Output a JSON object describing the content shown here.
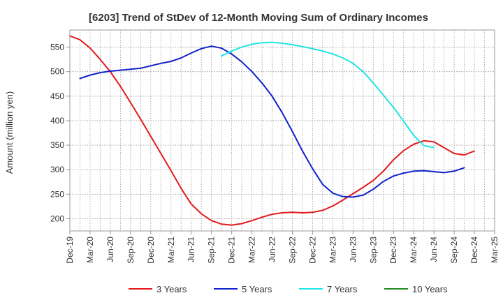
{
  "chart_data": {
    "type": "line",
    "title": "[6203]  Trend of StDev of 12-Month Moving Sum of Ordinary Incomes",
    "ylabel": "Amount (million yen)",
    "xlabel": "",
    "ylim": [
      175,
      585
    ],
    "yticks": [
      200,
      250,
      300,
      350,
      400,
      450,
      500,
      550
    ],
    "x_ticks": [
      "Dec-19",
      "Mar-20",
      "Jun-20",
      "Sep-20",
      "Dec-20",
      "Mar-21",
      "Jun-21",
      "Sep-21",
      "Dec-21",
      "Mar-22",
      "Jun-22",
      "Sep-22",
      "Dec-22",
      "Mar-23",
      "Jun-23",
      "Sep-23",
      "Dec-23",
      "Mar-24",
      "Jun-24",
      "Sep-24",
      "Dec-24",
      "Mar-25"
    ],
    "grid": true,
    "legend_position": "bottom",
    "series": [
      {
        "name": "3 Years",
        "color": "#e31a1c",
        "points": [
          [
            0,
            573
          ],
          [
            1,
            565
          ],
          [
            2,
            548
          ],
          [
            3,
            525
          ],
          [
            4,
            500
          ],
          [
            5,
            470
          ],
          [
            6,
            437
          ],
          [
            7,
            403
          ],
          [
            8,
            368
          ],
          [
            9,
            333
          ],
          [
            10,
            298
          ],
          [
            11,
            262
          ],
          [
            12,
            230
          ],
          [
            13,
            210
          ],
          [
            14,
            196
          ],
          [
            15,
            189
          ],
          [
            16,
            187
          ],
          [
            17,
            190
          ],
          [
            18,
            196
          ],
          [
            19,
            203
          ],
          [
            20,
            209
          ],
          [
            21,
            212
          ],
          [
            22,
            213
          ],
          [
            23,
            212
          ],
          [
            24,
            213
          ],
          [
            25,
            217
          ],
          [
            26,
            226
          ],
          [
            27,
            238
          ],
          [
            28,
            251
          ],
          [
            29,
            264
          ],
          [
            30,
            278
          ],
          [
            31,
            297
          ],
          [
            32,
            320
          ],
          [
            33,
            339
          ],
          [
            34,
            352
          ],
          [
            35,
            359
          ],
          [
            36,
            357
          ],
          [
            37,
            345
          ],
          [
            38,
            333
          ],
          [
            39,
            330
          ],
          [
            40,
            338
          ]
        ]
      },
      {
        "name": "5 Years",
        "color": "#1122cc",
        "points": [
          [
            1,
            486
          ],
          [
            2,
            493
          ],
          [
            3,
            498
          ],
          [
            4,
            501
          ],
          [
            5,
            503
          ],
          [
            6,
            505
          ],
          [
            7,
            507
          ],
          [
            8,
            512
          ],
          [
            9,
            517
          ],
          [
            10,
            521
          ],
          [
            11,
            528
          ],
          [
            12,
            538
          ],
          [
            13,
            547
          ],
          [
            14,
            552
          ],
          [
            15,
            548
          ],
          [
            16,
            536
          ],
          [
            17,
            520
          ],
          [
            18,
            500
          ],
          [
            19,
            477
          ],
          [
            20,
            450
          ],
          [
            21,
            416
          ],
          [
            22,
            378
          ],
          [
            23,
            338
          ],
          [
            24,
            302
          ],
          [
            25,
            270
          ],
          [
            26,
            252
          ],
          [
            27,
            245
          ],
          [
            28,
            244
          ],
          [
            29,
            248
          ],
          [
            30,
            260
          ],
          [
            31,
            276
          ],
          [
            32,
            287
          ],
          [
            33,
            293
          ],
          [
            34,
            297
          ],
          [
            35,
            298
          ],
          [
            36,
            296
          ],
          [
            37,
            294
          ],
          [
            38,
            297
          ],
          [
            39,
            304
          ]
        ]
      },
      {
        "name": "7 Years",
        "color": "#22e5e5",
        "points": [
          [
            15,
            532
          ],
          [
            16,
            542
          ],
          [
            17,
            550
          ],
          [
            18,
            556
          ],
          [
            19,
            559
          ],
          [
            20,
            560
          ],
          [
            21,
            558
          ],
          [
            22,
            555
          ],
          [
            23,
            551
          ],
          [
            24,
            547
          ],
          [
            25,
            542
          ],
          [
            26,
            536
          ],
          [
            27,
            528
          ],
          [
            28,
            517
          ],
          [
            29,
            500
          ],
          [
            30,
            477
          ],
          [
            31,
            452
          ],
          [
            32,
            427
          ],
          [
            33,
            399
          ],
          [
            34,
            370
          ],
          [
            35,
            349
          ],
          [
            36,
            345
          ]
        ]
      },
      {
        "name": "10 Years",
        "color": "#228b22",
        "points": []
      }
    ]
  }
}
